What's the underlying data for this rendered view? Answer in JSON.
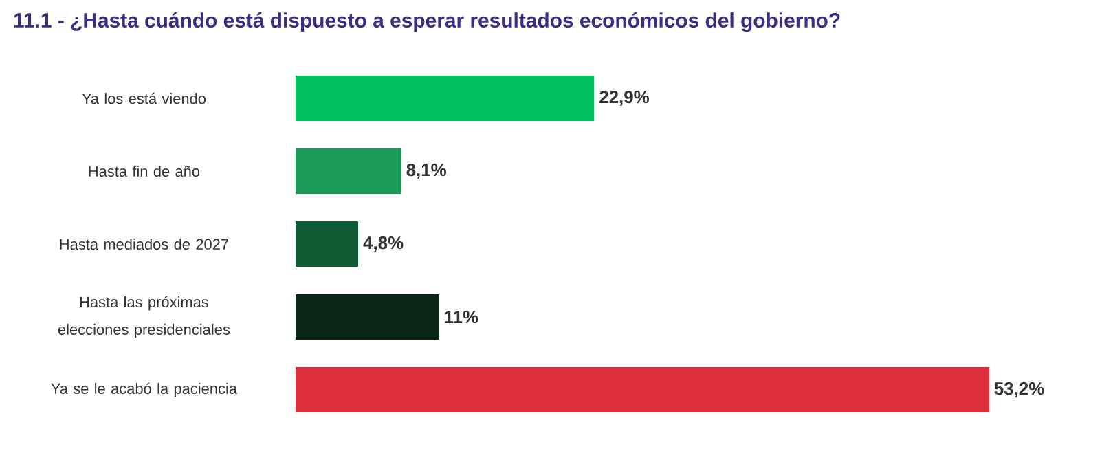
{
  "chart_data": {
    "type": "bar",
    "orientation": "horizontal",
    "title": "11.1 - ¿Hasta cuándo está dispuesto a esperar resultados económicos del gobierno?",
    "categories": [
      "Ya los está viendo",
      "Hasta fin de año",
      "Hasta mediados de 2027",
      "Hasta las próximas elecciones presidenciales",
      "Ya se le acabó la paciencia"
    ],
    "values": [
      22.9,
      8.1,
      4.8,
      11,
      53.2
    ],
    "value_labels": [
      "22,9%",
      "8,1%",
      "4,8%",
      "11%",
      "53,2%"
    ],
    "colors": [
      "#00c060",
      "#1b9a55",
      "#0f5c35",
      "#0a2616",
      "#dc2d3a"
    ]
  }
}
